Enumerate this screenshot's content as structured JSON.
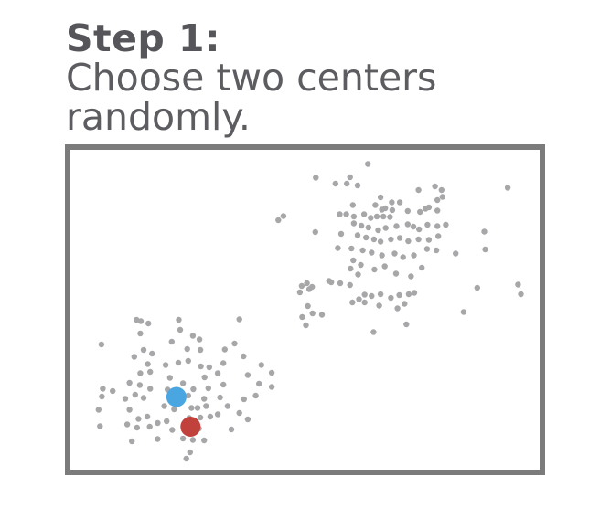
{
  "heading": {
    "step": "Step 1:",
    "description_line1": "Choose two centers",
    "description_line2": "randomly."
  },
  "colors": {
    "points": "#a7a7a9",
    "frame": "#7b7b7b",
    "center_blue": "#4aa6e0",
    "center_red": "#c1413d",
    "text": "#56565a"
  },
  "chart_data": {
    "type": "scatter",
    "title": "",
    "xlabel": "",
    "ylabel": "",
    "xlim": [
      0,
      100
    ],
    "ylim": [
      0,
      70
    ],
    "grid": false,
    "points": [
      [
        63.4,
        66.9
      ],
      [
        59.6,
        64.0
      ],
      [
        52.3,
        63.9
      ],
      [
        56.5,
        62.6
      ],
      [
        58.9,
        62.6
      ],
      [
        61.2,
        62.2
      ],
      [
        77.7,
        62.0
      ],
      [
        74.2,
        61.2
      ],
      [
        79.1,
        61.2
      ],
      [
        79.3,
        59.7
      ],
      [
        66.1,
        59.6
      ],
      [
        78.2,
        59.0
      ],
      [
        70.2,
        58.5
      ],
      [
        60.2,
        57.9
      ],
      [
        65.0,
        57.9
      ],
      [
        67.1,
        57.2
      ],
      [
        68.5,
        58.5
      ],
      [
        66.4,
        56.9
      ],
      [
        68.6,
        56.8
      ],
      [
        75.7,
        57.1
      ],
      [
        57.4,
        55.9
      ],
      [
        58.8,
        55.9
      ],
      [
        60.4,
        55.4
      ],
      [
        62.6,
        55.9
      ],
      [
        64.0,
        55.1
      ],
      [
        65.3,
        55.4
      ],
      [
        66.7,
        55.4
      ],
      [
        68.1,
        55.3
      ],
      [
        71.9,
        56.6
      ],
      [
        74.5,
        56.4
      ],
      [
        76.4,
        57.4
      ],
      [
        78.2,
        56.7
      ],
      [
        45.4,
        55.5
      ],
      [
        44.3,
        54.6
      ],
      [
        60.4,
        53.9
      ],
      [
        62.0,
        53.4
      ],
      [
        63.5,
        53.0
      ],
      [
        65.6,
        52.4
      ],
      [
        67.2,
        52.9
      ],
      [
        69.5,
        53.3
      ],
      [
        71.9,
        53.7
      ],
      [
        73.1,
        53.2
      ],
      [
        74.3,
        52.6
      ],
      [
        76.1,
        53.6
      ],
      [
        78.2,
        53.3
      ],
      [
        80.0,
        53.6
      ],
      [
        52.2,
        52.0
      ],
      [
        57.7,
        51.6
      ],
      [
        61.2,
        51.3
      ],
      [
        63.0,
        50.8
      ],
      [
        64.7,
        50.4
      ],
      [
        66.1,
        49.9
      ],
      [
        68.3,
        50.4
      ],
      [
        70.2,
        50.7
      ],
      [
        72.0,
        50.0
      ],
      [
        74.2,
        50.4
      ],
      [
        76.4,
        50.3
      ],
      [
        78.4,
        51.1
      ],
      [
        88.2,
        52.1
      ],
      [
        93.2,
        61.7
      ],
      [
        57.0,
        48.5
      ],
      [
        59.9,
        48.4
      ],
      [
        62.3,
        48.0
      ],
      [
        64.2,
        47.5
      ],
      [
        66.4,
        46.9
      ],
      [
        69.1,
        47.3
      ],
      [
        70.9,
        46.5
      ],
      [
        73.2,
        46.9
      ],
      [
        76.0,
        48.3
      ],
      [
        78.0,
        48.0
      ],
      [
        82.1,
        47.3
      ],
      [
        88.4,
        48.2
      ],
      [
        60.3,
        45.8
      ],
      [
        61.9,
        44.8
      ],
      [
        64.8,
        43.8
      ],
      [
        67.0,
        44.5
      ],
      [
        69.4,
        42.9
      ],
      [
        72.6,
        42.3
      ],
      [
        74.9,
        44.2
      ],
      [
        61.3,
        42.7
      ],
      [
        59.7,
        44.0
      ],
      [
        55.6,
        41.0
      ],
      [
        55.1,
        41.3
      ],
      [
        59.6,
        40.4
      ],
      [
        57.5,
        40.8
      ],
      [
        51.5,
        40.0
      ],
      [
        50.4,
        40.8
      ],
      [
        49.3,
        40.2
      ],
      [
        48.9,
        38.8
      ],
      [
        50.9,
        39.5
      ],
      [
        61.5,
        37.3
      ],
      [
        62.7,
        38.3
      ],
      [
        64.2,
        38.0
      ],
      [
        66.1,
        38.4
      ],
      [
        68.3,
        37.6
      ],
      [
        70.1,
        38.2
      ],
      [
        72.1,
        38.4
      ],
      [
        73.3,
        38.7
      ],
      [
        60.1,
        36.6
      ],
      [
        62.7,
        36.6
      ],
      [
        65.8,
        35.9
      ],
      [
        69.7,
        35.3
      ],
      [
        71.2,
        36.3
      ],
      [
        86.7,
        39.8
      ],
      [
        95.4,
        40.5
      ],
      [
        96.0,
        38.4
      ],
      [
        50.6,
        35.8
      ],
      [
        49.4,
        33.4
      ],
      [
        51.6,
        34.2
      ],
      [
        53.6,
        33.9
      ],
      [
        83.8,
        34.5
      ],
      [
        50.2,
        31.6
      ],
      [
        64.6,
        30.1
      ],
      [
        71.6,
        31.8
      ],
      [
        14.1,
        32.8
      ],
      [
        15.0,
        32.5
      ],
      [
        16.6,
        32.0
      ],
      [
        23.1,
        32.8
      ],
      [
        36.0,
        32.9
      ],
      [
        14.9,
        29.8
      ],
      [
        23.4,
        30.6
      ],
      [
        26.1,
        29.3
      ],
      [
        21.6,
        28.0
      ],
      [
        24.9,
        26.4
      ],
      [
        27.5,
        28.5
      ],
      [
        35.0,
        27.6
      ],
      [
        27.7,
        26.2
      ],
      [
        6.6,
        27.4
      ],
      [
        15.6,
        26.2
      ],
      [
        17.4,
        25.4
      ],
      [
        32.9,
        26.3
      ],
      [
        13.6,
        24.7
      ],
      [
        16.5,
        23.1
      ],
      [
        20.3,
        22.9
      ],
      [
        23.0,
        23.4
      ],
      [
        25.1,
        23.8
      ],
      [
        27.8,
        22.6
      ],
      [
        29.6,
        22.4
      ],
      [
        14.9,
        21.1
      ],
      [
        17.0,
        21.4
      ],
      [
        21.2,
        20.1
      ],
      [
        28.6,
        20.2
      ],
      [
        31.4,
        21.1
      ],
      [
        32.6,
        23.3
      ],
      [
        36.9,
        24.8
      ],
      [
        40.7,
        22.9
      ],
      [
        42.9,
        21.2
      ],
      [
        12.6,
        19.0
      ],
      [
        14.8,
        18.5
      ],
      [
        17.0,
        17.7
      ],
      [
        20.7,
        17.5
      ],
      [
        24.0,
        18.9
      ],
      [
        26.2,
        17.6
      ],
      [
        29.4,
        17.8
      ],
      [
        32.6,
        18.6
      ],
      [
        37.8,
        20.7
      ],
      [
        40.2,
        18.8
      ],
      [
        42.9,
        18.1
      ],
      [
        6.9,
        17.7
      ],
      [
        6.7,
        16.0
      ],
      [
        9.0,
        17.2
      ],
      [
        11.7,
        15.5
      ],
      [
        13.8,
        16.4
      ],
      [
        15.6,
        15.7
      ],
      [
        22.0,
        15.6
      ],
      [
        25.1,
        16.2
      ],
      [
        28.5,
        15.5
      ],
      [
        31.9,
        15.8
      ],
      [
        37.0,
        15.4
      ],
      [
        39.5,
        16.2
      ],
      [
        6.0,
        13.1
      ],
      [
        12.6,
        13.1
      ],
      [
        20.0,
        13.9
      ],
      [
        22.1,
        13.2
      ],
      [
        25.8,
        13.5
      ],
      [
        27.1,
        13.5
      ],
      [
        28.9,
        13.9
      ],
      [
        33.5,
        13.9
      ],
      [
        14.5,
        11.1
      ],
      [
        16.4,
        11.6
      ],
      [
        18.6,
        10.2
      ],
      [
        20.5,
        10.6
      ],
      [
        25.3,
        11.3
      ],
      [
        27.7,
        11.4
      ],
      [
        29.8,
        11.6
      ],
      [
        31.4,
        12.1
      ],
      [
        36.0,
        12.4
      ],
      [
        6.3,
        9.5
      ],
      [
        12.1,
        9.9
      ],
      [
        14.2,
        9.2
      ],
      [
        16.9,
        9.4
      ],
      [
        21.7,
        8.7
      ],
      [
        24.6,
        9.6
      ],
      [
        27.4,
        9.0
      ],
      [
        34.3,
        8.8
      ],
      [
        37.8,
        11.0
      ],
      [
        13.1,
        6.2
      ],
      [
        18.6,
        6.7
      ],
      [
        24.0,
        6.8
      ],
      [
        26.1,
        6.5
      ],
      [
        28.5,
        6.4
      ],
      [
        25.5,
        3.8
      ],
      [
        24.7,
        2.4
      ]
    ],
    "centers": [
      {
        "x": 22.6,
        "y": 15.9,
        "color": "#4aa6e0"
      },
      {
        "x": 25.6,
        "y": 9.4,
        "color": "#c1413d"
      }
    ]
  }
}
